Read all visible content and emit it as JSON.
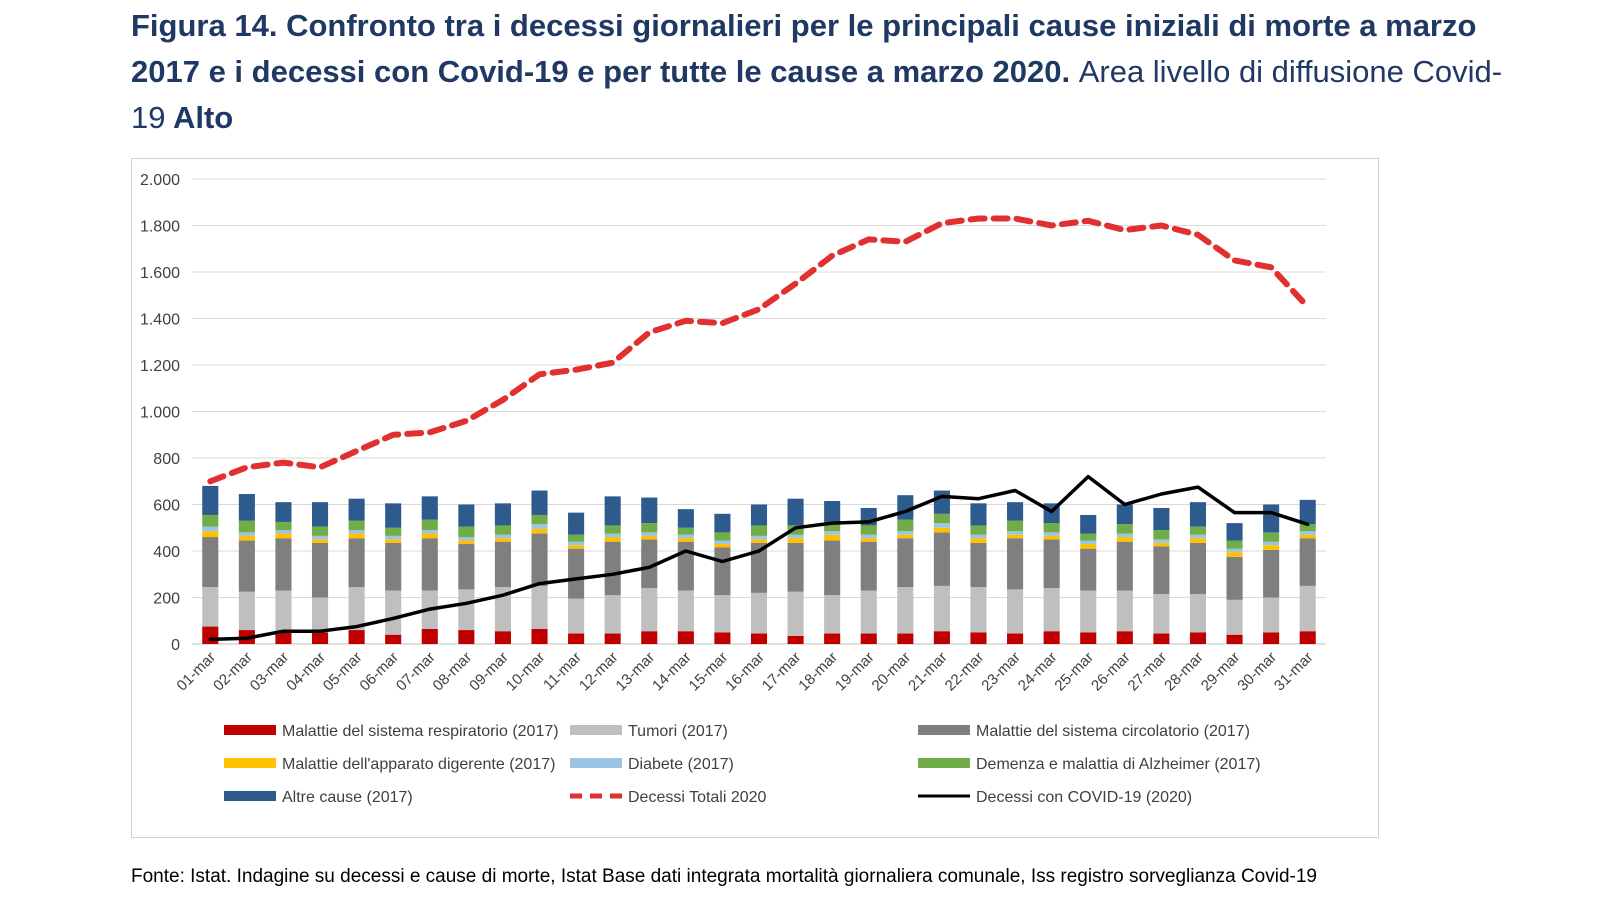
{
  "figure": {
    "label": "Figura 14.",
    "title_bold": "Confronto tra i decessi giornalieri per le principali cause iniziali di morte a marzo 2017 e i decessi con Covid-19 e per tutte le cause a marzo 2020.",
    "title_normal": "Area livello di diffusione Covid-19",
    "title_level": "Alto"
  },
  "source": "Fonte: Istat. Indagine su decessi e cause di morte, Istat Base dati integrata mortalità giornaliera comunale, Iss registro sorveglianza Covid-19",
  "chart_data": {
    "type": "bar",
    "stacked": true,
    "categories": [
      "01-mar",
      "02-mar",
      "03-mar",
      "04-mar",
      "05-mar",
      "06-mar",
      "07-mar",
      "08-mar",
      "09-mar",
      "10-mar",
      "11-mar",
      "12-mar",
      "13-mar",
      "14-mar",
      "15-mar",
      "16-mar",
      "17-mar",
      "18-mar",
      "19-mar",
      "20-mar",
      "21-mar",
      "22-mar",
      "23-mar",
      "24-mar",
      "25-mar",
      "26-mar",
      "27-mar",
      "28-mar",
      "29-mar",
      "30-mar",
      "31-mar"
    ],
    "ylim": [
      0,
      2000
    ],
    "yticks": [
      0,
      200,
      400,
      600,
      800,
      1000,
      1200,
      1400,
      1600,
      1800,
      2000
    ],
    "ytick_labels": [
      "0",
      "200",
      "400",
      "600",
      "800",
      "1.000",
      "1.200",
      "1.400",
      "1.600",
      "1.800",
      "2.000"
    ],
    "grid": true,
    "legend_position": "bottom",
    "series": [
      {
        "name": "Malattie del sistema respiratorio (2017)",
        "kind": "bar",
        "color": "#c00000",
        "values": [
          75,
          60,
          50,
          50,
          60,
          40,
          65,
          60,
          55,
          65,
          45,
          45,
          55,
          55,
          50,
          45,
          35,
          45,
          45,
          45,
          55,
          50,
          45,
          55,
          50,
          55,
          45,
          50,
          40,
          50,
          55
        ]
      },
      {
        "name": "Tumori (2017)",
        "kind": "bar",
        "color": "#bfbfbf",
        "values": [
          170,
          165,
          180,
          150,
          185,
          190,
          165,
          175,
          190,
          185,
          150,
          165,
          185,
          175,
          160,
          175,
          190,
          165,
          185,
          200,
          195,
          195,
          190,
          185,
          180,
          175,
          170,
          165,
          150,
          150,
          195
        ]
      },
      {
        "name": "Malattie del sistema circolatorio (2017)",
        "kind": "bar",
        "color": "#7f7f7f",
        "values": [
          215,
          220,
          225,
          235,
          210,
          205,
          225,
          195,
          195,
          225,
          215,
          230,
          210,
          210,
          205,
          215,
          210,
          235,
          210,
          210,
          230,
          190,
          220,
          210,
          180,
          210,
          205,
          220,
          185,
          205,
          205
        ]
      },
      {
        "name": "Malattie dell'apparato digerente (2017)",
        "kind": "bar",
        "color": "#ffc000",
        "values": [
          25,
          20,
          20,
          15,
          20,
          15,
          20,
          15,
          15,
          20,
          15,
          20,
          15,
          15,
          15,
          15,
          20,
          25,
          15,
          15,
          20,
          20,
          15,
          15,
          20,
          20,
          15,
          20,
          20,
          20,
          15
        ]
      },
      {
        "name": "Diabete (2017)",
        "kind": "bar",
        "color": "#9dc3e6",
        "values": [
          20,
          15,
          15,
          15,
          15,
          15,
          15,
          15,
          15,
          20,
          15,
          15,
          15,
          15,
          15,
          15,
          15,
          15,
          15,
          15,
          20,
          15,
          15,
          15,
          15,
          15,
          15,
          15,
          15,
          15,
          15
        ]
      },
      {
        "name": "Demenza e malattia di Alzheimer (2017)",
        "kind": "bar",
        "color": "#70ad47",
        "values": [
          50,
          50,
          35,
          40,
          40,
          35,
          45,
          45,
          40,
          40,
          30,
          35,
          40,
          30,
          35,
          45,
          40,
          40,
          40,
          50,
          40,
          40,
          45,
          40,
          30,
          40,
          40,
          35,
          35,
          40,
          30
        ]
      },
      {
        "name": "Altre cause (2017)",
        "kind": "bar",
        "color": "#2e5b8e",
        "values": [
          125,
          115,
          85,
          105,
          95,
          105,
          100,
          95,
          95,
          105,
          95,
          125,
          110,
          80,
          80,
          90,
          115,
          90,
          75,
          105,
          100,
          95,
          80,
          85,
          80,
          85,
          95,
          105,
          75,
          120,
          105
        ]
      },
      {
        "name": "Decessi Totali 2020",
        "kind": "line",
        "style": "dashed",
        "color": "#e03030",
        "values": [
          700,
          760,
          780,
          760,
          830,
          900,
          910,
          960,
          1050,
          1160,
          1180,
          1210,
          1340,
          1390,
          1380,
          1440,
          1550,
          1670,
          1740,
          1730,
          1810,
          1830,
          1830,
          1800,
          1820,
          1780,
          1800,
          1760,
          1650,
          1620,
          1450
        ]
      },
      {
        "name": "Decessi con COVID-19 (2020)",
        "kind": "line",
        "style": "solid",
        "color": "#000000",
        "values": [
          20,
          25,
          55,
          55,
          75,
          110,
          150,
          175,
          210,
          260,
          280,
          300,
          330,
          400,
          355,
          400,
          500,
          520,
          525,
          570,
          635,
          625,
          660,
          570,
          720,
          600,
          645,
          675,
          565,
          565,
          515
        ]
      }
    ]
  }
}
